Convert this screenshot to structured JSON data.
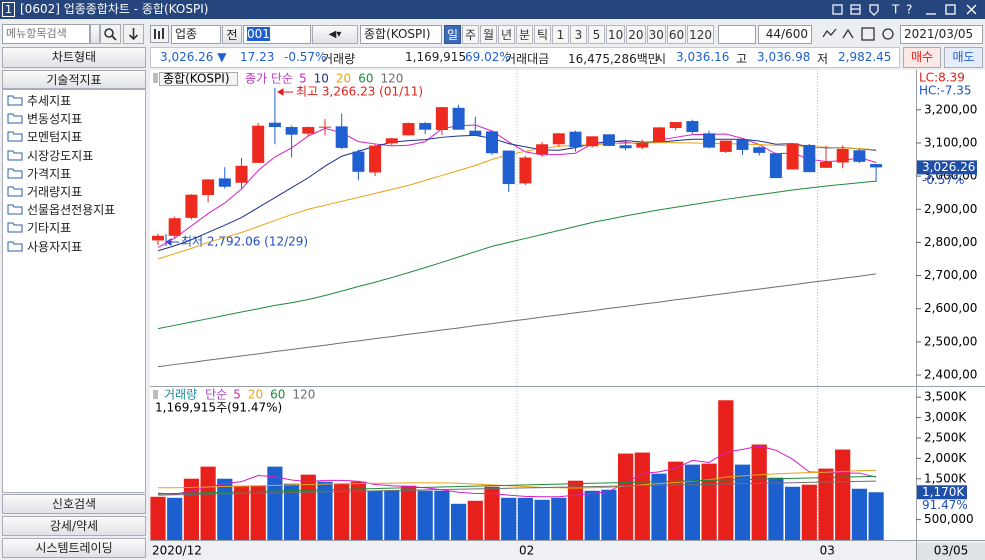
{
  "window": {
    "number": "1",
    "title": "[0602] 업종종합차트 - 종합(KOSPI)",
    "text_tool": "T",
    "help": "?"
  },
  "sidebar": {
    "search_placeholder": "메뉴항목검색",
    "chart_type": "차트형태",
    "indicators_header": "기술적지표",
    "indicators": [
      "추세지표",
      "변동성지표",
      "모멘텀지표",
      "시장강도지표",
      "가격지표",
      "거래량지표",
      "선물옵션전용지표",
      "기타지표",
      "사용자지표"
    ],
    "bottom_buttons": [
      "신호검색",
      "강세/약세",
      "시스템트레이딩"
    ]
  },
  "toolbar": {
    "market": "업종",
    "all": "전",
    "code": "001",
    "name": "종합(KOSPI)",
    "periods": [
      "일",
      "주",
      "월",
      "년",
      "분",
      "틱",
      "1",
      "3",
      "5",
      "10",
      "20",
      "30",
      "60",
      "120"
    ],
    "active_period_index": 0,
    "count": "44",
    "max": "/600",
    "date": "2021/03/05"
  },
  "quote": {
    "price": "3,026.26",
    "arrow": "▼",
    "change": "17.23",
    "change_pct": "-0.57%",
    "volume_label": "거래량",
    "volume": "1,169,915",
    "volume_pct": "69.02%",
    "amount_label": "거래대금",
    "amount": "16,475,286백만",
    "open_label": "시",
    "open": "3,036.16",
    "high_label": "고",
    "high": "3,036.98",
    "low_label": "저",
    "low": "2,982.45",
    "buy": "매수",
    "sell": "매도"
  },
  "price_chart": {
    "type": "candlestick",
    "legend_name": "종합(KOSPI)",
    "ma_label": "종가 단순",
    "ma_label_color": "#c03cc0",
    "up_color": "#ee2a1e",
    "down_color": "#1f5fcf",
    "open": [
      2806,
      2820,
      2874,
      2943,
      2993,
      2980,
      3040,
      3161,
      3148,
      3128,
      3146,
      3150,
      3074,
      3011,
      3099,
      3123,
      3160,
      3139,
      3206,
      3137,
      3135,
      3077,
      2978,
      3066,
      3096,
      3134,
      3090,
      3126,
      3093,
      3086,
      3103,
      3145,
      3166,
      3129,
      3073,
      3110,
      3087,
      3069,
      3020,
      3094,
      3025,
      3041,
      3078,
      3036.16
    ],
    "high": [
      2826,
      2878,
      2946,
      2991,
      3027,
      3055,
      3161,
      3266.23,
      3152,
      3150,
      3172,
      3189,
      3080,
      3096,
      3116,
      3161,
      3163,
      3209,
      3215,
      3179,
      3135,
      3077,
      3061,
      3103,
      3130,
      3137,
      3120,
      3126,
      3110,
      3110,
      3148,
      3163,
      3170,
      3137,
      3107,
      3112,
      3090,
      3071,
      3100,
      3097,
      3091,
      3093,
      3083,
      3036.98
    ],
    "low": [
      2792.06,
      2814,
      2869,
      2921,
      2962,
      2962,
      3040,
      3096,
      3056,
      3120,
      3123,
      3082,
      2988,
      3000,
      3093,
      3123,
      3127,
      3124,
      3140,
      3122,
      3064,
      2952,
      2973,
      3058,
      3089,
      3074,
      3086,
      3091,
      3078,
      3081,
      3101,
      3138,
      3128,
      3084,
      3070,
      3064,
      3062,
      2994,
      3020,
      3012,
      3024,
      3024,
      3039,
      2982.45
    ],
    "close": [
      2820,
      2873,
      2944,
      2990,
      2968,
      3031,
      3152,
      3148,
      3125,
      3148,
      3149,
      3085,
      3013,
      3092,
      3114,
      3160,
      3140,
      3208,
      3140,
      3122,
      3069,
      2976,
      3056,
      3096,
      3129,
      3087,
      3120,
      3091,
      3084,
      3100,
      3147,
      3163,
      3133,
      3086,
      3107,
      3079,
      3070,
      2994,
      3099,
      3012,
      3043,
      3082,
      3043,
      3026.26
    ],
    "series": [
      {
        "name": "5",
        "color": "#d21fc8",
        "values": [
          2785,
          2813,
          2850,
          2887,
          2919,
          2961,
          3017,
          3058,
          3085,
          3121,
          3144,
          3131,
          3104,
          3097,
          3091,
          3093,
          3104,
          3143,
          3152,
          3154,
          3136,
          3103,
          3073,
          3064,
          3065,
          3069,
          3098,
          3105,
          3102,
          3096,
          3108,
          3117,
          3125,
          3126,
          3127,
          3114,
          3095,
          3067,
          3070,
          3051,
          3044,
          3046,
          3056,
          3041
        ]
      },
      {
        "name": "10",
        "color": "#1c2f8f",
        "values": [
          2775,
          2790,
          2808,
          2830,
          2852,
          2875,
          2905,
          2935,
          2965,
          2995,
          3030,
          3060,
          3075,
          3090,
          3102,
          3107,
          3110,
          3117,
          3121,
          3123,
          3114,
          3098,
          3088,
          3079,
          3078,
          3086,
          3098,
          3103,
          3107,
          3103,
          3102,
          3107,
          3111,
          3111,
          3111,
          3111,
          3106,
          3096,
          3098,
          3089,
          3085,
          3086,
          3082,
          3078
        ]
      },
      {
        "name": "20",
        "color": "#e8a317",
        "values": [
          2750,
          2766,
          2782,
          2800,
          2815,
          2830,
          2848,
          2866,
          2884,
          2900,
          2912,
          2924,
          2936,
          2948,
          2960,
          2972,
          2987,
          3002,
          3017,
          3032,
          3050,
          3065,
          3075,
          3083,
          3090,
          3093,
          3095,
          3097,
          3099,
          3100,
          3101,
          3101,
          3100,
          3099,
          3098,
          3097,
          3095,
          3093,
          3091,
          3089,
          3087,
          3085,
          3083,
          3080
        ]
      },
      {
        "name": "60",
        "color": "#1f8a3a",
        "values": [
          2540,
          2550,
          2560,
          2570,
          2580,
          2590,
          2600,
          2610,
          2618,
          2628,
          2640,
          2653,
          2667,
          2680,
          2694,
          2709,
          2724,
          2740,
          2756,
          2772,
          2788,
          2800,
          2812,
          2824,
          2836,
          2848,
          2860,
          2870,
          2880,
          2889,
          2898,
          2906,
          2914,
          2922,
          2930,
          2937,
          2944,
          2951,
          2958,
          2964,
          2970,
          2975,
          2980,
          2985
        ]
      },
      {
        "name": "120",
        "color": "#6e6e6e",
        "values": [
          2425,
          2432,
          2438,
          2445,
          2451,
          2458,
          2464,
          2471,
          2477,
          2484,
          2490,
          2497,
          2503,
          2510,
          2516,
          2523,
          2529,
          2536,
          2542,
          2549,
          2555,
          2562,
          2568,
          2575,
          2581,
          2588,
          2594,
          2601,
          2607,
          2614,
          2620,
          2627,
          2633,
          2640,
          2646,
          2653,
          2659,
          2666,
          2672,
          2679,
          2685,
          2692,
          2698,
          2705
        ]
      }
    ],
    "ylim": [
      2370,
      3320
    ],
    "yticks": [
      {
        "value": 2400,
        "label": "2,400,00"
      },
      {
        "value": 2500,
        "label": "2,500,00"
      },
      {
        "value": 2600,
        "label": "2,600,00"
      },
      {
        "value": 2700,
        "label": "2,700,00"
      },
      {
        "value": 2800,
        "label": "2,800,00"
      },
      {
        "value": 2900,
        "label": "2,900,00"
      },
      {
        "value": 3000,
        "label": "3,000,00"
      },
      {
        "value": 3100,
        "label": "3,100,00"
      },
      {
        "value": 3200,
        "label": "3,200,00"
      }
    ],
    "high_annotation": "최고 3,266.23 (01/11)",
    "low_annotation": "최저 2,792.06 (12/29)",
    "lc": "LC:8.39",
    "hc": "HC:-7.35",
    "last_price": "3,026.26",
    "last_pct": "-0.57%"
  },
  "volume_chart": {
    "type": "bar",
    "legend_name": "거래량",
    "legend_name_color": "#1b8c9c",
    "ma_label": "단순",
    "ma_label_color": "#a040c0",
    "info": "1,169,915주(91.47%)",
    "up_color": "#e8201c",
    "down_color": "#1c60d0",
    "values": [
      1059,
      1034,
      1502,
      1798,
      1502,
      1330,
      1330,
      1798,
      1379,
      1601,
      1429,
      1379,
      1429,
      1207,
      1207,
      1330,
      1207,
      1207,
      887,
      961,
      1305,
      1034,
      1034,
      985,
      1034,
      1453,
      1207,
      1232,
      2118,
      2143,
      1626,
      1921,
      1847,
      1872,
      3424,
      1847,
      2340,
      1527,
      1305,
      1355,
      1749,
      2217,
      1256,
      1169.915
    ],
    "bar_up": [
      true,
      false,
      true,
      true,
      false,
      true,
      true,
      false,
      false,
      true,
      false,
      true,
      true,
      false,
      false,
      true,
      false,
      false,
      false,
      true,
      true,
      false,
      false,
      false,
      false,
      true,
      false,
      false,
      true,
      true,
      false,
      true,
      false,
      true,
      true,
      false,
      true,
      false,
      false,
      true,
      true,
      true,
      false,
      false
    ],
    "series": [
      {
        "name": "5",
        "color": "#d21fc8",
        "values": [
          1150,
          1120,
          1200,
          1300,
          1380,
          1430,
          1580,
          1550,
          1470,
          1430,
          1460,
          1460,
          1440,
          1360,
          1330,
          1310,
          1280,
          1230,
          1170,
          1140,
          1140,
          1100,
          1070,
          1060,
          1060,
          1100,
          1140,
          1190,
          1400,
          1630,
          1670,
          1760,
          1950,
          1900,
          2150,
          2220,
          2300,
          2200,
          1980,
          1670,
          1650,
          1640,
          1640,
          1540
        ]
      },
      {
        "name": "20",
        "color": "#e8a317",
        "values": [
          1280,
          1280,
          1290,
          1300,
          1310,
          1320,
          1330,
          1340,
          1350,
          1360,
          1370,
          1380,
          1380,
          1390,
          1390,
          1400,
          1400,
          1400,
          1390,
          1370,
          1350,
          1330,
          1310,
          1290,
          1280,
          1270,
          1280,
          1290,
          1320,
          1350,
          1380,
          1410,
          1440,
          1480,
          1540,
          1570,
          1600,
          1620,
          1640,
          1650,
          1660,
          1680,
          1700,
          1710
        ]
      },
      {
        "name": "60",
        "color": "#1f8a3a",
        "values": [
          1130,
          1140,
          1150,
          1160,
          1170,
          1180,
          1190,
          1200,
          1210,
          1220,
          1230,
          1240,
          1250,
          1260,
          1270,
          1280,
          1290,
          1300,
          1310,
          1320,
          1330,
          1340,
          1350,
          1360,
          1370,
          1380,
          1390,
          1400,
          1410,
          1420,
          1430,
          1440,
          1450,
          1460,
          1470,
          1480,
          1490,
          1500,
          1510,
          1520,
          1530,
          1540,
          1550,
          1560
        ]
      },
      {
        "name": "120",
        "color": "#6e6e6e",
        "values": [
          1100,
          1108,
          1116,
          1124,
          1132,
          1140,
          1148,
          1156,
          1164,
          1172,
          1180,
          1188,
          1196,
          1204,
          1212,
          1220,
          1228,
          1236,
          1244,
          1252,
          1260,
          1268,
          1276,
          1284,
          1292,
          1300,
          1308,
          1316,
          1324,
          1332,
          1340,
          1348,
          1356,
          1364,
          1372,
          1380,
          1388,
          1396,
          1404,
          1412,
          1420,
          1428,
          1436,
          1444
        ]
      }
    ],
    "ylim": [
      0,
      3700
    ],
    "yticks": [
      {
        "value": 500,
        "label": "500,000"
      },
      {
        "value": 1500,
        "label": "1,500K"
      },
      {
        "value": 2000,
        "label": "2,000K"
      },
      {
        "value": 2500,
        "label": "2,500K"
      },
      {
        "value": 3000,
        "label": "3,000K"
      },
      {
        "value": 3500,
        "label": "3,500K"
      }
    ],
    "last_label": "1,170K",
    "last_pct": "91.47%"
  },
  "x_axis": {
    "categories": [
      "2020/12",
      null,
      null,
      null,
      null,
      null,
      null,
      null,
      null,
      null,
      null,
      null,
      null,
      null,
      null,
      null,
      null,
      null,
      null,
      null,
      null,
      null,
      "02",
      null,
      null,
      null,
      null,
      null,
      null,
      null,
      null,
      null,
      null,
      null,
      null,
      null,
      null,
      null,
      null,
      null,
      "03",
      null,
      null,
      null
    ],
    "current": "03/05"
  }
}
